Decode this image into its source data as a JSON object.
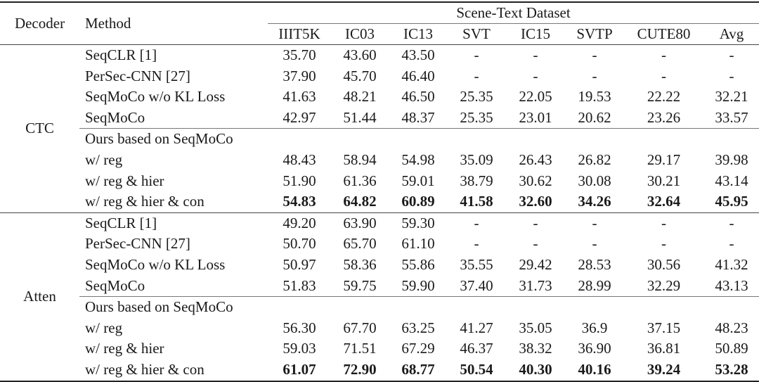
{
  "header": {
    "decoder": "Decoder",
    "method": "Method",
    "dataset_group": "Scene-Text Dataset",
    "datasets": [
      "IIIT5K",
      "IC03",
      "IC13",
      "SVT",
      "IC15",
      "SVTP",
      "CUTE80",
      "Avg"
    ]
  },
  "groups": [
    {
      "decoder": "CTC",
      "rows": [
        {
          "method": "SeqCLR [1]",
          "values": [
            "35.70",
            "43.60",
            "43.50",
            "-",
            "-",
            "-",
            "-",
            "-"
          ],
          "bold": false
        },
        {
          "method": "PerSec-CNN [27]",
          "values": [
            "37.90",
            "45.70",
            "46.40",
            "-",
            "-",
            "-",
            "-",
            "-"
          ],
          "bold": false
        },
        {
          "method": "SeqMoCo w/o KL Loss",
          "values": [
            "41.63",
            "48.21",
            "46.50",
            "25.35",
            "22.05",
            "19.53",
            "22.22",
            "32.21"
          ],
          "bold": false
        },
        {
          "method": "SeqMoCo",
          "values": [
            "42.97",
            "51.44",
            "48.37",
            "25.35",
            "23.01",
            "20.62",
            "23.26",
            "33.57"
          ],
          "bold": false
        },
        {
          "method": "Ours based on SeqMoCo",
          "values": [
            "",
            "",
            "",
            "",
            "",
            "",
            "",
            ""
          ],
          "bold": false
        },
        {
          "method": "w/ reg",
          "values": [
            "48.43",
            "58.94",
            "54.98",
            "35.09",
            "26.43",
            "26.82",
            "29.17",
            "39.98"
          ],
          "bold": false
        },
        {
          "method": "w/ reg & hier",
          "values": [
            "51.90",
            "61.36",
            "59.01",
            "38.79",
            "30.62",
            "30.08",
            "30.21",
            "43.14"
          ],
          "bold": false
        },
        {
          "method": "w/ reg & hier & con",
          "values": [
            "54.83",
            "64.82",
            "60.89",
            "41.58",
            "32.60",
            "34.26",
            "32.64",
            "45.95"
          ],
          "bold": true
        }
      ]
    },
    {
      "decoder": "Atten",
      "rows": [
        {
          "method": "SeqCLR [1]",
          "values": [
            "49.20",
            "63.90",
            "59.30",
            "-",
            "-",
            "-",
            "-",
            "-"
          ],
          "bold": false
        },
        {
          "method": "PerSec-CNN [27]",
          "values": [
            "50.70",
            "65.70",
            "61.10",
            "-",
            "-",
            "-",
            "-",
            "-"
          ],
          "bold": false
        },
        {
          "method": "SeqMoCo w/o KL Loss",
          "values": [
            "50.97",
            "58.36",
            "55.86",
            "35.55",
            "29.42",
            "28.53",
            "30.56",
            "41.32"
          ],
          "bold": false
        },
        {
          "method": "SeqMoCo",
          "values": [
            "51.83",
            "59.75",
            "59.90",
            "37.40",
            "31.73",
            "28.99",
            "32.29",
            "43.13"
          ],
          "bold": false
        },
        {
          "method": "Ours based on SeqMoCo",
          "values": [
            "",
            "",
            "",
            "",
            "",
            "",
            "",
            ""
          ],
          "bold": false
        },
        {
          "method": "w/ reg",
          "values": [
            "56.30",
            "67.70",
            "63.25",
            "41.27",
            "35.05",
            "36.9",
            "37.15",
            "48.23"
          ],
          "bold": false
        },
        {
          "method": "w/ reg & hier",
          "values": [
            "59.03",
            "71.51",
            "67.29",
            "46.37",
            "38.32",
            "36.90",
            "36.81",
            "50.89"
          ],
          "bold": false
        },
        {
          "method": "w/ reg & hier & con",
          "values": [
            "61.07",
            "72.90",
            "68.77",
            "50.54",
            "40.30",
            "40.16",
            "39.24",
            "53.28"
          ],
          "bold": true
        }
      ]
    }
  ]
}
